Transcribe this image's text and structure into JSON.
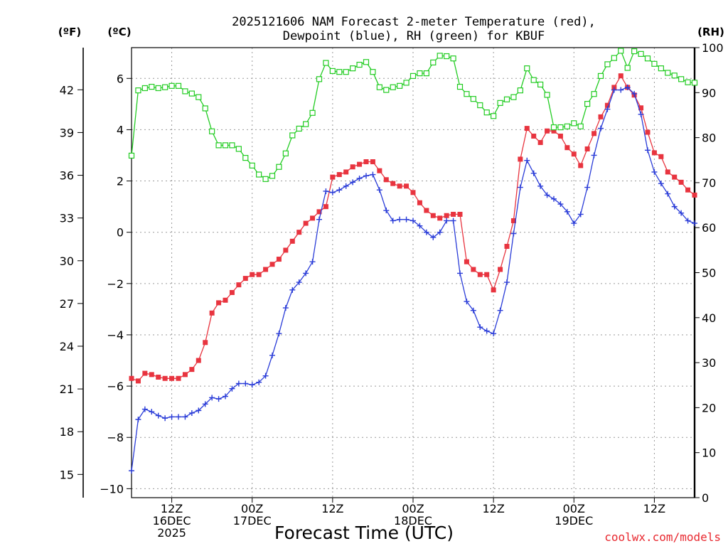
{
  "chart_data": {
    "type": "line",
    "title_line1": "2025121606 NAM Forecast 2-meter Temperature (red),",
    "title_line2": "Dewpoint (blue), RH (green) for KBUF",
    "unit_f": "(ºF)",
    "unit_c": "(ºC)",
    "unit_rh": "(RH)",
    "xlabel": "Forecast Time (UTC)",
    "watermark": "coolwx.com/models",
    "watermark_color": "#e8282f",
    "grid": true,
    "ylim_c": [
      -10.35,
      7.2
    ],
    "ylim_rh": [
      0,
      100
    ],
    "xlim_hours": [
      0,
      84
    ],
    "x_step_hours": 1,
    "f_ticks": [
      "15",
      "18",
      "21",
      "24",
      "27",
      "30",
      "33",
      "36",
      "39",
      "42"
    ],
    "f_tick_values_c": [
      -9.444,
      -7.778,
      -6.111,
      -4.444,
      -2.778,
      -1.111,
      0.556,
      2.222,
      3.889,
      5.556
    ],
    "c_ticks": [
      "−10",
      "−8",
      "−6",
      "−4",
      "−2",
      "0",
      "2",
      "4",
      "6"
    ],
    "c_tick_values": [
      -10,
      -8,
      -6,
      -4,
      -2,
      0,
      2,
      4,
      6
    ],
    "rh_ticks": [
      "0",
      "10",
      "20",
      "30",
      "40",
      "50",
      "60",
      "70",
      "80",
      "90",
      "100"
    ],
    "rh_tick_values": [
      0,
      10,
      20,
      30,
      40,
      50,
      60,
      70,
      80,
      90,
      100
    ],
    "x_ticks": [
      {
        "hour": 6,
        "l1": "12Z",
        "l2": "16DEC",
        "l3": "2025"
      },
      {
        "hour": 18,
        "l1": "00Z",
        "l2": "17DEC",
        "l3": ""
      },
      {
        "hour": 30,
        "l1": "12Z",
        "l2": "",
        "l3": ""
      },
      {
        "hour": 42,
        "l1": "00Z",
        "l2": "18DEC",
        "l3": ""
      },
      {
        "hour": 54,
        "l1": "12Z",
        "l2": "",
        "l3": ""
      },
      {
        "hour": 66,
        "l1": "00Z",
        "l2": "19DEC",
        "l3": ""
      },
      {
        "hour": 78,
        "l1": "12Z",
        "l2": "",
        "l3": ""
      }
    ],
    "series": [
      {
        "key": "temperature_c",
        "color": "#e8343f",
        "marker": "square-filled",
        "values": [
          -5.7,
          -5.8,
          -5.5,
          -5.55,
          -5.65,
          -5.7,
          -5.7,
          -5.7,
          -5.55,
          -5.35,
          -5.0,
          -4.3,
          -3.15,
          -2.75,
          -2.65,
          -2.35,
          -2.05,
          -1.8,
          -1.65,
          -1.65,
          -1.45,
          -1.25,
          -1.05,
          -0.7,
          -0.35,
          0.0,
          0.35,
          0.55,
          0.8,
          1.0,
          2.15,
          2.25,
          2.35,
          2.55,
          2.65,
          2.75,
          2.75,
          2.4,
          2.05,
          1.9,
          1.8,
          1.8,
          1.55,
          1.15,
          0.85,
          0.65,
          0.55,
          0.65,
          0.7,
          0.7,
          -1.15,
          -1.45,
          -1.65,
          -1.65,
          -2.25,
          -1.45,
          -0.55,
          0.45,
          2.85,
          4.05,
          3.75,
          3.5,
          3.95,
          3.95,
          3.75,
          3.3,
          3.05,
          2.6,
          3.25,
          3.85,
          4.5,
          4.95,
          5.65,
          6.1,
          5.65,
          5.35,
          4.85,
          3.9,
          3.1,
          2.95,
          2.35,
          2.15,
          1.95,
          1.65,
          1.45
        ]
      },
      {
        "key": "dewpoint_c",
        "color": "#2a3cd8",
        "marker": "plus",
        "values": [
          -9.3,
          -7.3,
          -6.9,
          -7.0,
          -7.15,
          -7.25,
          -7.2,
          -7.2,
          -7.2,
          -7.05,
          -6.95,
          -6.7,
          -6.45,
          -6.5,
          -6.4,
          -6.1,
          -5.9,
          -5.9,
          -5.95,
          -5.85,
          -5.6,
          -4.8,
          -3.95,
          -2.95,
          -2.25,
          -1.95,
          -1.6,
          -1.15,
          0.5,
          1.6,
          1.55,
          1.65,
          1.8,
          1.95,
          2.1,
          2.2,
          2.25,
          1.65,
          0.85,
          0.45,
          0.5,
          0.5,
          0.45,
          0.25,
          0.0,
          -0.2,
          0.0,
          0.45,
          0.45,
          -1.6,
          -2.7,
          -3.05,
          -3.7,
          -3.85,
          -3.95,
          -3.05,
          -1.95,
          -0.05,
          1.75,
          2.8,
          2.3,
          1.8,
          1.45,
          1.3,
          1.1,
          0.8,
          0.35,
          0.7,
          1.75,
          3.0,
          4.05,
          4.8,
          5.55,
          5.55,
          5.65,
          5.4,
          4.6,
          3.2,
          2.35,
          1.9,
          1.5,
          1.0,
          0.75,
          0.45,
          0.35
        ]
      },
      {
        "key": "rh_pct",
        "color": "#22cc22",
        "marker": "square-open",
        "values": [
          76,
          90.5,
          91,
          91.3,
          91,
          91.2,
          91.5,
          91.5,
          90.3,
          89.8,
          89,
          86.5,
          81.4,
          78.3,
          78.3,
          78.3,
          77.5,
          75.5,
          73.8,
          71.8,
          70.8,
          71.5,
          73.5,
          76.5,
          80.5,
          82,
          83,
          85.5,
          93,
          96.6,
          94.8,
          94.6,
          94.6,
          95.4,
          96.2,
          96.8,
          94.6,
          91.2,
          90.6,
          91.2,
          91.5,
          92.2,
          93.7,
          94.3,
          94.3,
          96.7,
          98.2,
          98.1,
          97.6,
          91.3,
          89.7,
          88.6,
          87.2,
          85.6,
          84.8,
          87.7,
          88.5,
          89,
          90.5,
          95.4,
          92.8,
          91.8,
          89.5,
          82.3,
          82.3,
          82.5,
          83.2,
          82.5,
          87.5,
          89.7,
          93.7,
          96.3,
          97.7,
          99.3,
          95.5,
          99.2,
          98.6,
          97.6,
          96.4,
          95.4,
          94.4,
          93.8,
          93,
          92.3,
          92.2
        ]
      }
    ]
  }
}
